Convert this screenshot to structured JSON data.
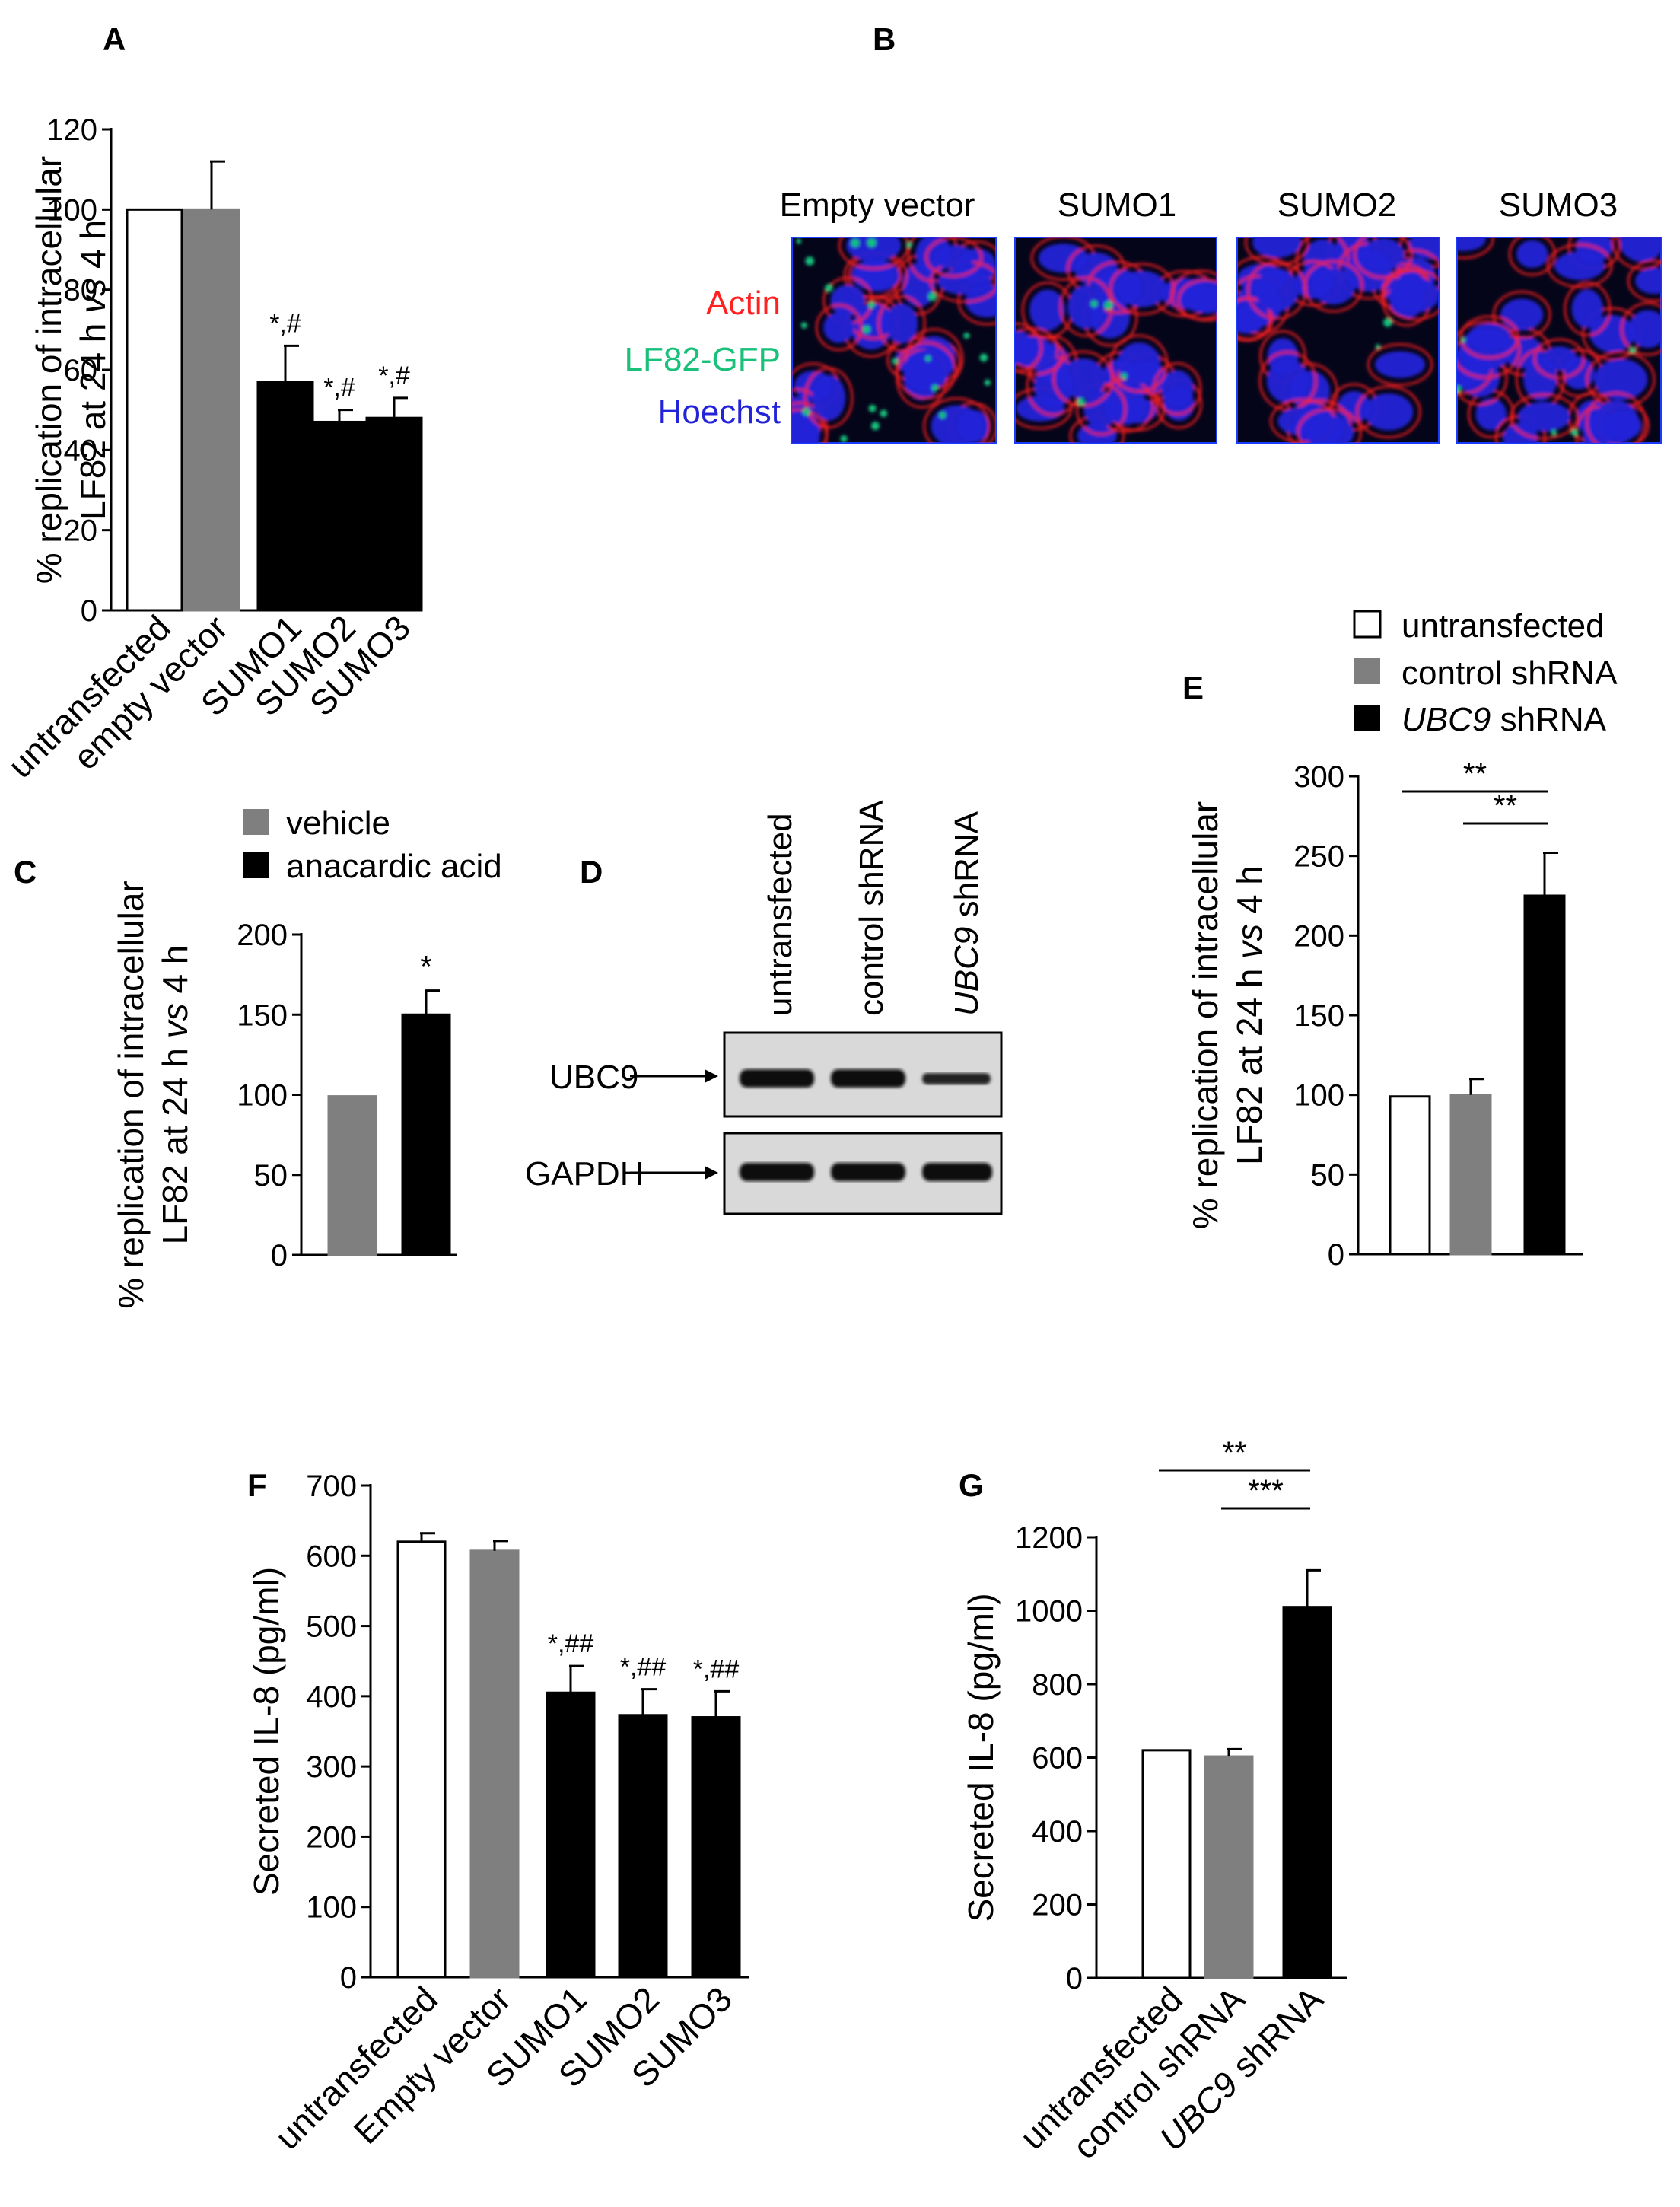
{
  "colors": {
    "untransfected": "#ffffff",
    "empty_vector": "#7f7f7f",
    "sumo": "#000000",
    "vehicle": "#7f7f7f",
    "anacardic_acid": "#000000",
    "control_shRNA": "#7f7f7f",
    "ubc9_shRNA": "#000000",
    "actin": "#ff2020",
    "gfp": "#19c07a",
    "hoechst": "#2323d8"
  },
  "chart_data": [
    {
      "panel": "A",
      "type": "bar",
      "categories": [
        "untransfected",
        "empty vector",
        "SUMO1",
        "SUMO2",
        "SUMO3"
      ],
      "values": [
        100,
        100,
        57,
        47,
        48
      ],
      "errors": [
        0,
        12,
        9,
        3,
        5
      ],
      "significance": [
        "",
        "",
        "*,#",
        "*,#",
        "*,#"
      ],
      "ylabel_lines": [
        "% replication of intracellular",
        "LF82 at 24 h vs 4 h"
      ],
      "ylim": [
        0,
        120
      ],
      "yticks": [
        0,
        20,
        40,
        60,
        80,
        100,
        120
      ]
    },
    {
      "panel": "C",
      "type": "bar",
      "categories": [
        "vehicle",
        "anacardic acid"
      ],
      "values": [
        99,
        150
      ],
      "errors": [
        0,
        15
      ],
      "significance": [
        "",
        "*"
      ],
      "legend": [
        "vehicle",
        "anacardic acid"
      ],
      "ylabel_lines": [
        "% replication of intracellular",
        "LF82 at 24 h vs 4 h"
      ],
      "ylim": [
        0,
        200
      ],
      "yticks": [
        0,
        50,
        100,
        150,
        200
      ]
    },
    {
      "panel": "E",
      "type": "bar",
      "categories": [
        "untransfected",
        "control shRNA",
        "UBC9 shRNA"
      ],
      "values": [
        99,
        100,
        225
      ],
      "errors": [
        0,
        10,
        27
      ],
      "legend": [
        "untransfected",
        "control shRNA",
        "UBC9 shRNA"
      ],
      "brackets": [
        {
          "from": 0,
          "to": 2,
          "label": "**"
        },
        {
          "from": 1,
          "to": 2,
          "label": "**"
        }
      ],
      "ylabel_lines": [
        "% replication of intracellular",
        "LF82 at 24 h vs 4 h"
      ],
      "ylim": [
        0,
        300
      ],
      "yticks": [
        0,
        50,
        100,
        150,
        200,
        250,
        300
      ]
    },
    {
      "panel": "F",
      "type": "bar",
      "categories": [
        "untransfected",
        "Empty vector",
        "SUMO1",
        "SUMO2",
        "SUMO3"
      ],
      "values": [
        620,
        607,
        405,
        373,
        370
      ],
      "errors": [
        12,
        14,
        38,
        37,
        37
      ],
      "significance": [
        "",
        "",
        "*,##",
        "*,##",
        "*,##"
      ],
      "ylabel": "Secreted IL-8 (pg/ml)",
      "ylim": [
        0,
        700
      ],
      "yticks": [
        0,
        100,
        200,
        300,
        400,
        500,
        600,
        700
      ]
    },
    {
      "panel": "G",
      "type": "bar",
      "categories": [
        "untransfected",
        "control shRNA",
        "UBC9 shRNA"
      ],
      "values": [
        620,
        603,
        1010
      ],
      "errors": [
        0,
        20,
        100
      ],
      "brackets": [
        {
          "from": 0,
          "to": 2,
          "label": "**"
        },
        {
          "from": 1,
          "to": 2,
          "label": "***"
        }
      ],
      "ylabel": "Secreted IL-8 (pg/ml)",
      "ylim": [
        0,
        1200
      ],
      "yticks": [
        0,
        200,
        400,
        600,
        800,
        1000,
        1200
      ]
    }
  ],
  "panel_b": {
    "title": "B",
    "columns": [
      "Empty vector",
      "SUMO1",
      "SUMO2",
      "SUMO3"
    ],
    "stain_labels": [
      "Actin",
      "LF82-GFP",
      "Hoechst"
    ]
  },
  "panel_d": {
    "title": "D",
    "lanes": [
      "untransfected",
      "control shRNA",
      "UBC9 shRNA"
    ],
    "bands": [
      "UBC9",
      "GAPDH"
    ]
  },
  "panel_titles": {
    "a": "A",
    "c": "C",
    "e": "E",
    "f": "F",
    "g": "G"
  }
}
